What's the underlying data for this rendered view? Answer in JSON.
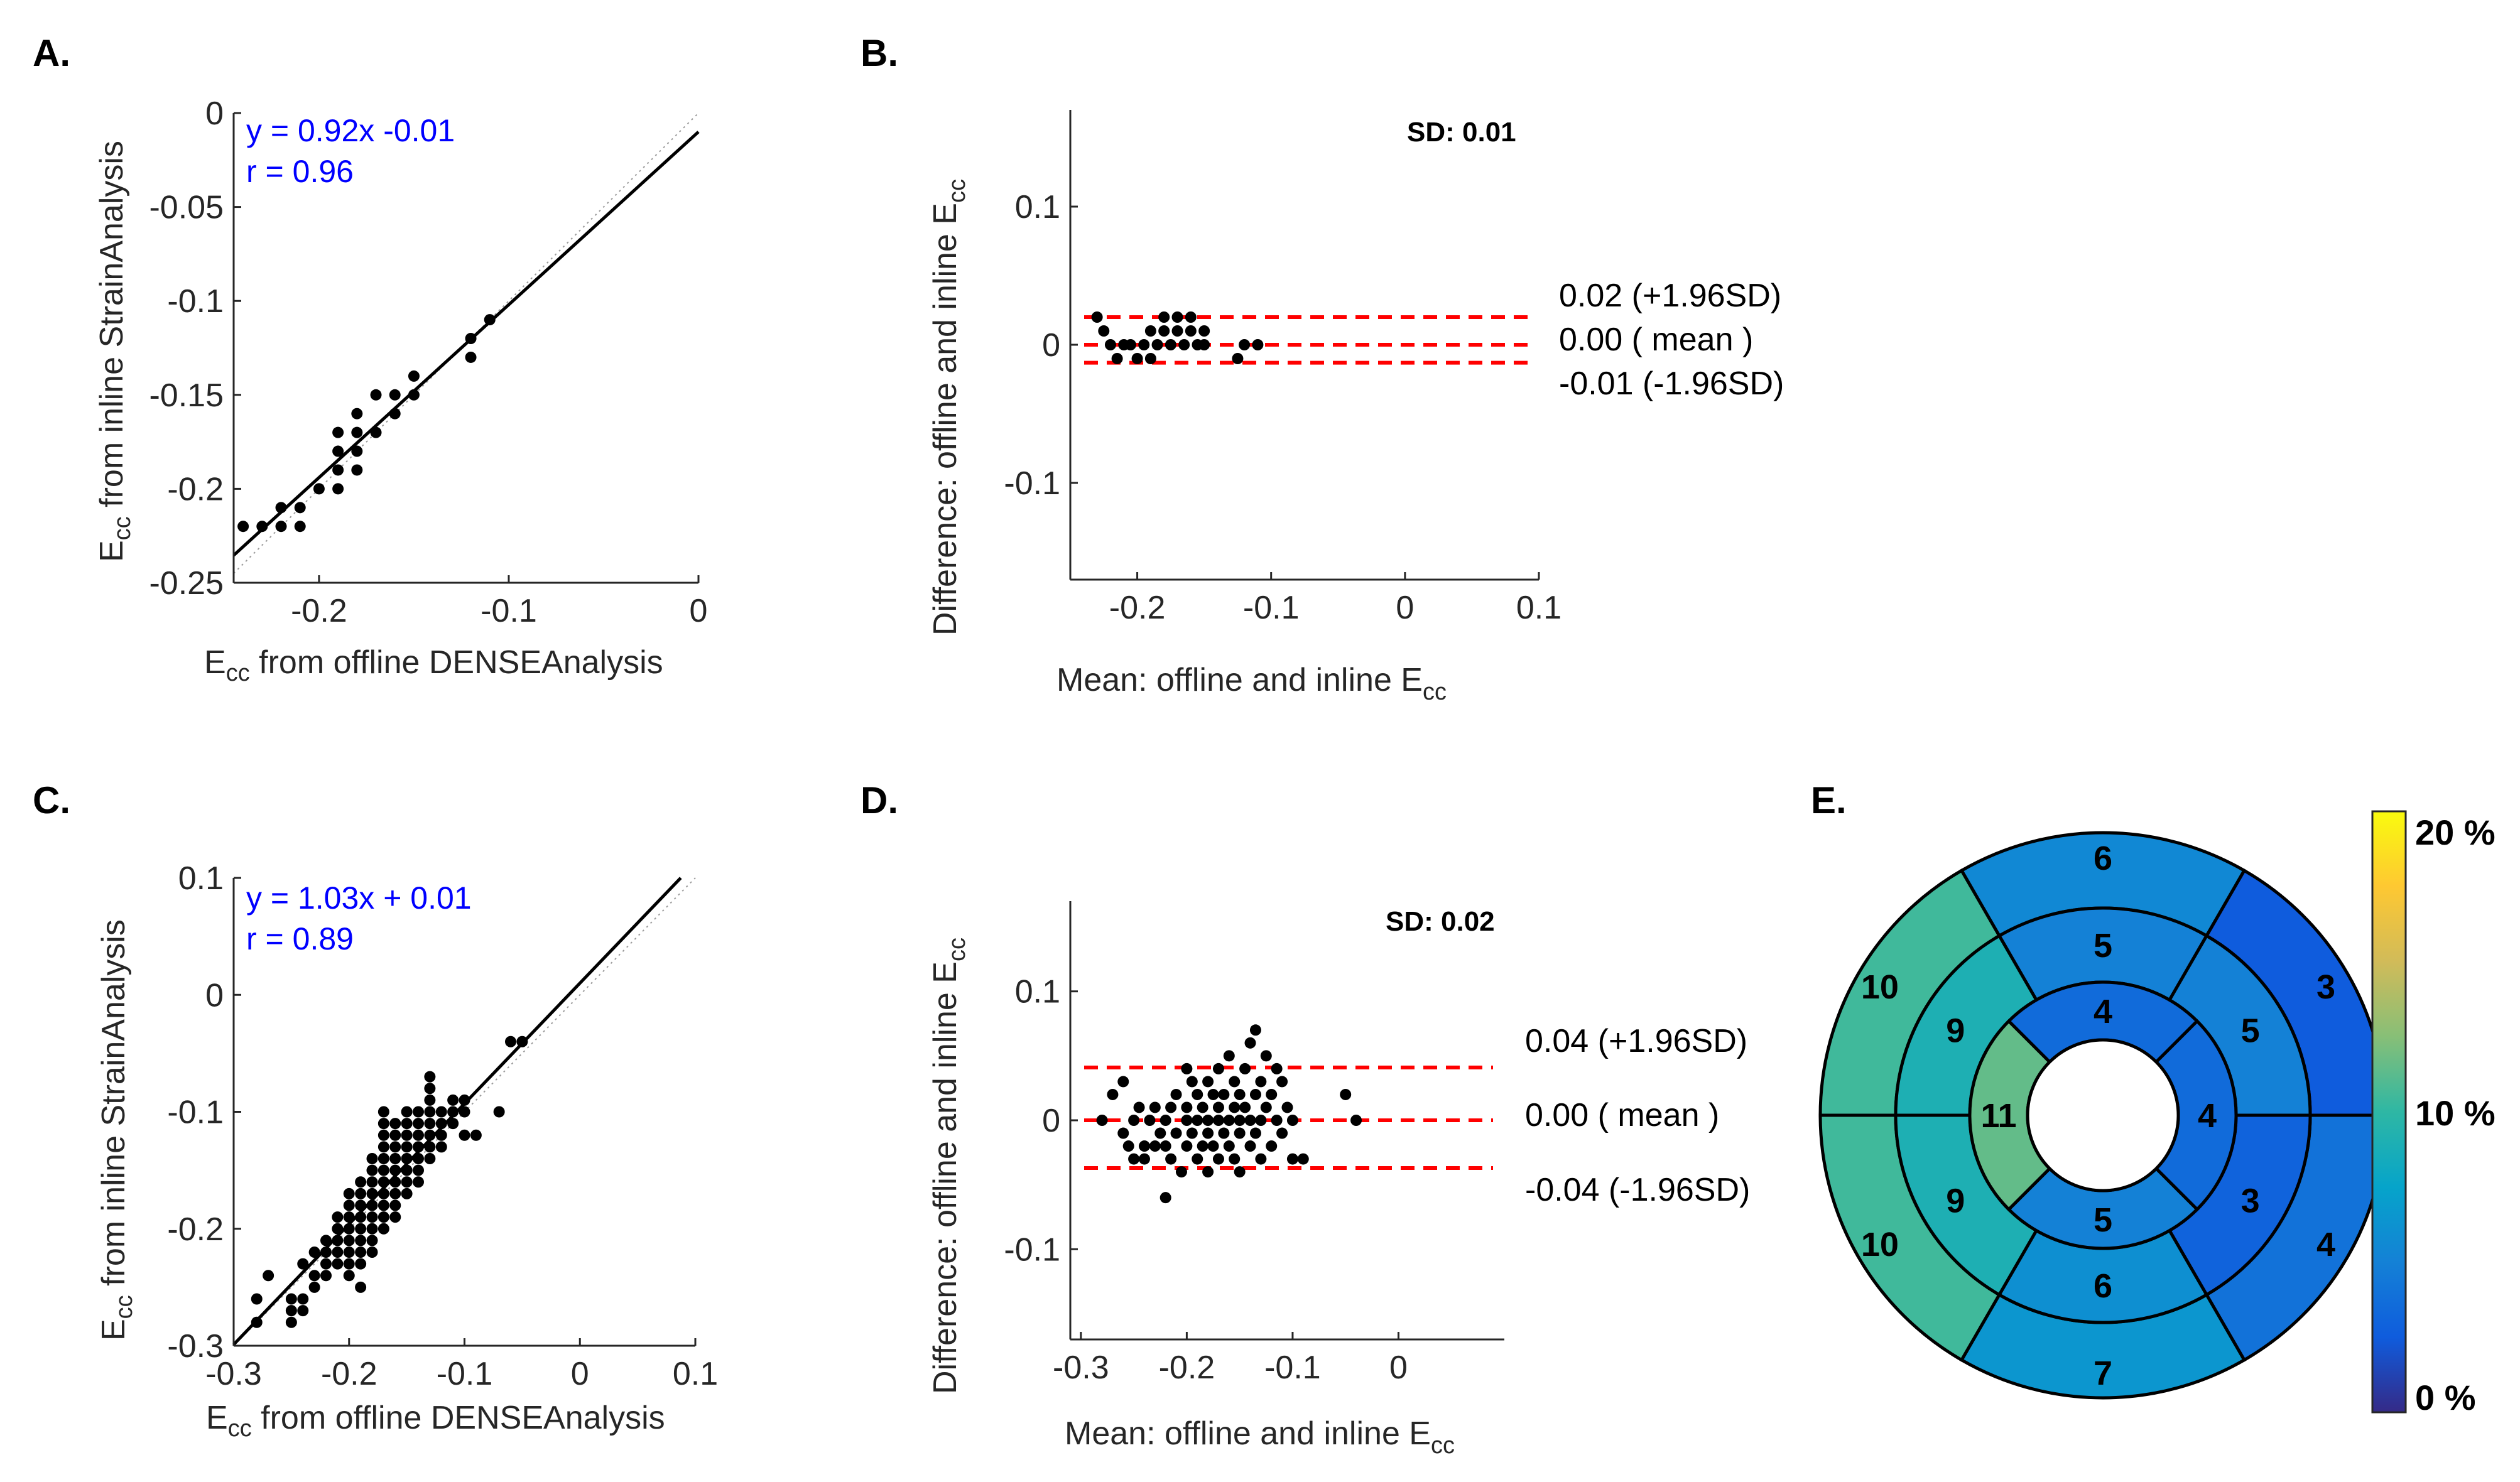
{
  "chart_data": [
    {
      "panel": "A.",
      "type": "scatter",
      "xlabel": "E_cc from offline DENSEAnalysis",
      "ylabel": "E_cc from inline StrainAnalysis",
      "xlim": [
        -0.245,
        0.0
      ],
      "ylim": [
        -0.25,
        0.0
      ],
      "xticks": [
        -0.2,
        -0.1,
        0
      ],
      "xtick_labels": [
        "-0.2",
        "-0.1",
        "0"
      ],
      "yticks": [
        0,
        -0.05,
        -0.1,
        -0.15,
        -0.2,
        -0.25
      ],
      "ytick_labels": [
        "0",
        "-0.05",
        "-0.1",
        "-0.15",
        "-0.2",
        "-0.25"
      ],
      "fit": {
        "slope": 0.92,
        "intercept": -0.01,
        "equation": "y = 0.92x -0.01",
        "r_text": "r = 0.96"
      },
      "identity_line": true,
      "points": [
        [
          -0.24,
          -0.22
        ],
        [
          -0.23,
          -0.22
        ],
        [
          -0.22,
          -0.22
        ],
        [
          -0.22,
          -0.21
        ],
        [
          -0.21,
          -0.21
        ],
        [
          -0.21,
          -0.22
        ],
        [
          -0.2,
          -0.2
        ],
        [
          -0.19,
          -0.2
        ],
        [
          -0.19,
          -0.19
        ],
        [
          -0.19,
          -0.18
        ],
        [
          -0.19,
          -0.17
        ],
        [
          -0.18,
          -0.19
        ],
        [
          -0.18,
          -0.18
        ],
        [
          -0.18,
          -0.17
        ],
        [
          -0.18,
          -0.16
        ],
        [
          -0.17,
          -0.17
        ],
        [
          -0.17,
          -0.15
        ],
        [
          -0.16,
          -0.16
        ],
        [
          -0.16,
          -0.15
        ],
        [
          -0.15,
          -0.15
        ],
        [
          -0.15,
          -0.14
        ],
        [
          -0.12,
          -0.13
        ],
        [
          -0.12,
          -0.12
        ],
        [
          -0.11,
          -0.11
        ]
      ]
    },
    {
      "panel": "B.",
      "type": "scatter",
      "xlabel": "Mean: offline and inline E_cc",
      "ylabel": "Difference: offline and inline E_cc",
      "xlim": [
        -0.25,
        0.1
      ],
      "ylim": [
        -0.17,
        0.17
      ],
      "xticks": [
        -0.2,
        -0.1,
        0,
        0.1
      ],
      "xtick_labels": [
        "-0.2",
        "-0.1",
        "0",
        "0.1"
      ],
      "yticks": [
        0.1,
        0,
        -0.1
      ],
      "ytick_labels": [
        "0.1",
        "0",
        "-0.1"
      ],
      "sd_text": "SD: 0.01",
      "lines": {
        "upper": 0.02,
        "mean": 0.0,
        "lower": -0.013
      },
      "line_labels": [
        "0.02 (+1.96SD)",
        "0.00 ( mean )",
        "-0.01 (-1.96SD)"
      ],
      "points": [
        [
          -0.23,
          0.02
        ],
        [
          -0.225,
          0.01
        ],
        [
          -0.22,
          0.0
        ],
        [
          -0.215,
          -0.01
        ],
        [
          -0.21,
          0.0
        ],
        [
          -0.205,
          0.0
        ],
        [
          -0.2,
          -0.01
        ],
        [
          -0.195,
          0.0
        ],
        [
          -0.19,
          0.01
        ],
        [
          -0.19,
          -0.01
        ],
        [
          -0.185,
          0.0
        ],
        [
          -0.18,
          0.01
        ],
        [
          -0.18,
          0.02
        ],
        [
          -0.175,
          0.0
        ],
        [
          -0.17,
          0.02
        ],
        [
          -0.17,
          0.01
        ],
        [
          -0.165,
          0.0
        ],
        [
          -0.16,
          0.02
        ],
        [
          -0.16,
          0.01
        ],
        [
          -0.155,
          0.0
        ],
        [
          -0.15,
          0.01
        ],
        [
          -0.15,
          0.0
        ],
        [
          -0.125,
          -0.01
        ],
        [
          -0.12,
          0.0
        ],
        [
          -0.11,
          0.0
        ]
      ]
    },
    {
      "panel": "C.",
      "type": "scatter",
      "xlabel": "E_cc from offline DENSEAnalysis",
      "ylabel": "E_cc from inline StrainAnalysis",
      "xlim": [
        -0.3,
        0.1
      ],
      "ylim": [
        -0.3,
        0.1
      ],
      "xticks": [
        -0.3,
        -0.2,
        -0.1,
        0,
        0.1
      ],
      "xtick_labels": [
        "-0.3",
        "-0.2",
        "-0.1",
        "0",
        "0.1"
      ],
      "yticks": [
        0.1,
        0,
        -0.1,
        -0.2,
        -0.3
      ],
      "ytick_labels": [
        "0.1",
        "0",
        "-0.1",
        "-0.2",
        "-0.3"
      ],
      "fit": {
        "slope": 1.03,
        "intercept": 0.01,
        "equation": "y = 1.03x + 0.01",
        "r_text": "r = 0.89"
      },
      "identity_line": true,
      "points": [
        [
          -0.28,
          -0.26
        ],
        [
          -0.28,
          -0.28
        ],
        [
          -0.27,
          -0.24
        ],
        [
          -0.25,
          -0.26
        ],
        [
          -0.25,
          -0.27
        ],
        [
          -0.25,
          -0.28
        ],
        [
          -0.24,
          -0.26
        ],
        [
          -0.24,
          -0.27
        ],
        [
          -0.24,
          -0.23
        ],
        [
          -0.23,
          -0.22
        ],
        [
          -0.23,
          -0.24
        ],
        [
          -0.23,
          -0.25
        ],
        [
          -0.22,
          -0.21
        ],
        [
          -0.22,
          -0.22
        ],
        [
          -0.22,
          -0.23
        ],
        [
          -0.22,
          -0.24
        ],
        [
          -0.21,
          -0.19
        ],
        [
          -0.21,
          -0.2
        ],
        [
          -0.21,
          -0.21
        ],
        [
          -0.21,
          -0.22
        ],
        [
          -0.21,
          -0.23
        ],
        [
          -0.2,
          -0.17
        ],
        [
          -0.2,
          -0.18
        ],
        [
          -0.2,
          -0.19
        ],
        [
          -0.2,
          -0.2
        ],
        [
          -0.2,
          -0.21
        ],
        [
          -0.2,
          -0.22
        ],
        [
          -0.2,
          -0.23
        ],
        [
          -0.2,
          -0.24
        ],
        [
          -0.19,
          -0.16
        ],
        [
          -0.19,
          -0.17
        ],
        [
          -0.19,
          -0.18
        ],
        [
          -0.19,
          -0.19
        ],
        [
          -0.19,
          -0.2
        ],
        [
          -0.19,
          -0.21
        ],
        [
          -0.19,
          -0.22
        ],
        [
          -0.19,
          -0.23
        ],
        [
          -0.19,
          -0.25
        ],
        [
          -0.18,
          -0.14
        ],
        [
          -0.18,
          -0.15
        ],
        [
          -0.18,
          -0.16
        ],
        [
          -0.18,
          -0.17
        ],
        [
          -0.18,
          -0.18
        ],
        [
          -0.18,
          -0.19
        ],
        [
          -0.18,
          -0.2
        ],
        [
          -0.18,
          -0.21
        ],
        [
          -0.18,
          -0.22
        ],
        [
          -0.17,
          -0.1
        ],
        [
          -0.17,
          -0.11
        ],
        [
          -0.17,
          -0.12
        ],
        [
          -0.17,
          -0.13
        ],
        [
          -0.17,
          -0.14
        ],
        [
          -0.17,
          -0.15
        ],
        [
          -0.17,
          -0.16
        ],
        [
          -0.17,
          -0.17
        ],
        [
          -0.17,
          -0.18
        ],
        [
          -0.17,
          -0.19
        ],
        [
          -0.17,
          -0.2
        ],
        [
          -0.16,
          -0.11
        ],
        [
          -0.16,
          -0.12
        ],
        [
          -0.16,
          -0.13
        ],
        [
          -0.16,
          -0.14
        ],
        [
          -0.16,
          -0.15
        ],
        [
          -0.16,
          -0.16
        ],
        [
          -0.16,
          -0.17
        ],
        [
          -0.16,
          -0.18
        ],
        [
          -0.16,
          -0.19
        ],
        [
          -0.15,
          -0.1
        ],
        [
          -0.15,
          -0.11
        ],
        [
          -0.15,
          -0.12
        ],
        [
          -0.15,
          -0.13
        ],
        [
          -0.15,
          -0.14
        ],
        [
          -0.15,
          -0.15
        ],
        [
          -0.15,
          -0.16
        ],
        [
          -0.15,
          -0.17
        ],
        [
          -0.14,
          -0.1
        ],
        [
          -0.14,
          -0.11
        ],
        [
          -0.14,
          -0.12
        ],
        [
          -0.14,
          -0.13
        ],
        [
          -0.14,
          -0.14
        ],
        [
          -0.14,
          -0.15
        ],
        [
          -0.14,
          -0.16
        ],
        [
          -0.13,
          -0.07
        ],
        [
          -0.13,
          -0.08
        ],
        [
          -0.13,
          -0.09
        ],
        [
          -0.13,
          -0.1
        ],
        [
          -0.13,
          -0.11
        ],
        [
          -0.13,
          -0.12
        ],
        [
          -0.13,
          -0.13
        ],
        [
          -0.13,
          -0.14
        ],
        [
          -0.12,
          -0.1
        ],
        [
          -0.12,
          -0.11
        ],
        [
          -0.12,
          -0.12
        ],
        [
          -0.12,
          -0.13
        ],
        [
          -0.11,
          -0.09
        ],
        [
          -0.11,
          -0.1
        ],
        [
          -0.11,
          -0.11
        ],
        [
          -0.1,
          -0.09
        ],
        [
          -0.1,
          -0.1
        ],
        [
          -0.1,
          -0.12
        ],
        [
          -0.09,
          -0.12
        ],
        [
          -0.07,
          -0.1
        ],
        [
          -0.06,
          -0.04
        ],
        [
          -0.05,
          -0.04
        ]
      ]
    },
    {
      "panel": "D.",
      "type": "scatter",
      "xlabel": "Mean: offline and inline E_cc",
      "ylabel": "Difference: offline and inline E_cc",
      "xlim": [
        -0.31,
        0.1
      ],
      "ylim": [
        -0.17,
        0.17
      ],
      "xticks": [
        -0.3,
        -0.2,
        -0.1,
        0
      ],
      "xtick_labels": [
        "-0.3",
        "-0.2",
        "-0.1",
        "0"
      ],
      "yticks": [
        0.1,
        0,
        -0.1
      ],
      "ytick_labels": [
        "0.1",
        "0",
        "-0.1"
      ],
      "sd_text": "SD: 0.02",
      "lines": {
        "upper": 0.041,
        "mean": 0.0,
        "lower": -0.037
      },
      "line_labels": [
        "0.04 (+1.96SD)",
        "0.00 ( mean )",
        "-0.04 (-1.96SD)"
      ],
      "points": [
        [
          -0.28,
          0.0
        ],
        [
          -0.27,
          0.02
        ],
        [
          -0.26,
          0.03
        ],
        [
          -0.26,
          -0.01
        ],
        [
          -0.255,
          -0.02
        ],
        [
          -0.25,
          -0.03
        ],
        [
          -0.25,
          0.0
        ],
        [
          -0.245,
          0.01
        ],
        [
          -0.24,
          -0.02
        ],
        [
          -0.24,
          -0.03
        ],
        [
          -0.235,
          0.0
        ],
        [
          -0.23,
          0.01
        ],
        [
          -0.23,
          -0.02
        ],
        [
          -0.225,
          -0.01
        ],
        [
          -0.22,
          0.0
        ],
        [
          -0.22,
          -0.02
        ],
        [
          -0.22,
          -0.06
        ],
        [
          -0.215,
          0.01
        ],
        [
          -0.215,
          -0.03
        ],
        [
          -0.21,
          -0.01
        ],
        [
          -0.21,
          0.02
        ],
        [
          -0.205,
          -0.04
        ],
        [
          -0.2,
          0.0
        ],
        [
          -0.2,
          0.01
        ],
        [
          -0.2,
          0.04
        ],
        [
          -0.2,
          -0.02
        ],
        [
          -0.195,
          0.03
        ],
        [
          -0.195,
          -0.01
        ],
        [
          -0.19,
          0.0
        ],
        [
          -0.19,
          0.02
        ],
        [
          -0.19,
          -0.03
        ],
        [
          -0.185,
          0.01
        ],
        [
          -0.185,
          -0.02
        ],
        [
          -0.18,
          0.0
        ],
        [
          -0.18,
          0.03
        ],
        [
          -0.18,
          -0.01
        ],
        [
          -0.18,
          -0.04
        ],
        [
          -0.175,
          0.02
        ],
        [
          -0.175,
          -0.02
        ],
        [
          -0.17,
          0.0
        ],
        [
          -0.17,
          0.01
        ],
        [
          -0.17,
          0.04
        ],
        [
          -0.17,
          -0.03
        ],
        [
          -0.165,
          0.02
        ],
        [
          -0.165,
          -0.01
        ],
        [
          -0.16,
          0.0
        ],
        [
          -0.16,
          0.05
        ],
        [
          -0.16,
          -0.02
        ],
        [
          -0.155,
          0.01
        ],
        [
          -0.155,
          0.03
        ],
        [
          -0.155,
          -0.03
        ],
        [
          -0.15,
          0.0
        ],
        [
          -0.15,
          0.02
        ],
        [
          -0.15,
          -0.01
        ],
        [
          -0.15,
          -0.04
        ],
        [
          -0.145,
          0.04
        ],
        [
          -0.145,
          0.01
        ],
        [
          -0.14,
          0.0
        ],
        [
          -0.14,
          0.06
        ],
        [
          -0.14,
          -0.02
        ],
        [
          -0.135,
          0.02
        ],
        [
          -0.135,
          0.07
        ],
        [
          -0.135,
          -0.01
        ],
        [
          -0.13,
          0.0
        ],
        [
          -0.13,
          0.03
        ],
        [
          -0.13,
          -0.03
        ],
        [
          -0.125,
          0.05
        ],
        [
          -0.125,
          0.01
        ],
        [
          -0.12,
          0.02
        ],
        [
          -0.12,
          -0.02
        ],
        [
          -0.115,
          0.04
        ],
        [
          -0.115,
          0.0
        ],
        [
          -0.11,
          -0.01
        ],
        [
          -0.11,
          0.03
        ],
        [
          -0.105,
          0.01
        ],
        [
          -0.1,
          -0.03
        ],
        [
          -0.1,
          0.0
        ],
        [
          -0.09,
          -0.03
        ],
        [
          -0.05,
          0.02
        ],
        [
          -0.04,
          0.0
        ]
      ]
    }
  ],
  "bullseye": {
    "panel": "E.",
    "colorbar_labels": [
      "20 %",
      "10 %",
      "0 %"
    ],
    "colorbar_range": [
      0,
      20
    ],
    "basal": [
      {
        "label": "6",
        "value": 5.5
      },
      {
        "label": "3",
        "value": 2.5
      },
      {
        "label": "4",
        "value": 4.0
      },
      {
        "label": "7",
        "value": 6.5
      },
      {
        "label": "10",
        "value": 10.5
      },
      {
        "label": "10",
        "value": 10.5
      }
    ],
    "mid": [
      {
        "label": "5",
        "value": 5.0
      },
      {
        "label": "5",
        "value": 5.0
      },
      {
        "label": "3",
        "value": 3.0
      },
      {
        "label": "6",
        "value": 6.0
      },
      {
        "label": "9",
        "value": 9.0
      },
      {
        "label": "9",
        "value": 9.0
      }
    ],
    "apical": [
      {
        "label": "4",
        "value": 3.5
      },
      {
        "label": "4",
        "value": 3.5
      },
      {
        "label": "5",
        "value": 5.0
      },
      {
        "label": "11",
        "value": 11.5
      }
    ]
  }
}
